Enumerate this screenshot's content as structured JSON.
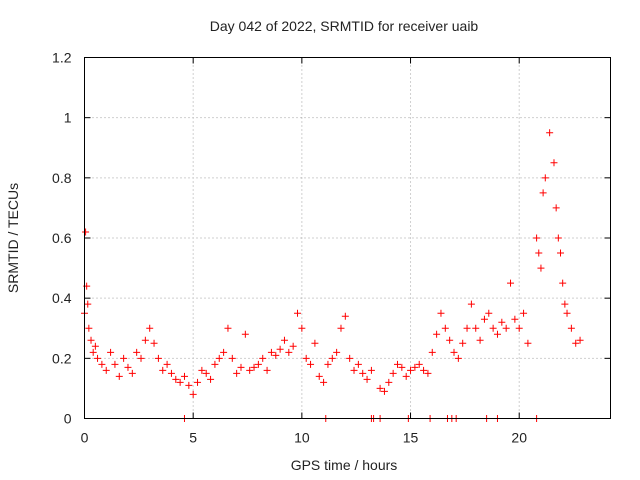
{
  "chart_data": {
    "type": "scatter",
    "title": "Day 042 of 2022, SRMTID for receiver uaib",
    "xlabel": "GPS time / hours",
    "ylabel": "SRMTID / TECUs",
    "xlim": [
      0,
      24.2
    ],
    "ylim": [
      0,
      1.2
    ],
    "xticks": [
      0,
      5,
      10,
      15,
      20
    ],
    "xtick_labels": [
      "0",
      "5",
      "10",
      "15",
      "20"
    ],
    "yticks": [
      0,
      0.2,
      0.4,
      0.6,
      0.8,
      1.0,
      1.2
    ],
    "ytick_labels": [
      "0",
      "0.2",
      "0.4",
      "0.6",
      "0.8",
      "1",
      "1.2"
    ],
    "grid": true,
    "marker": "+",
    "series": [
      {
        "name": "SRMTID",
        "color": "#ff0000",
        "x": [
          0.0,
          0.05,
          0.1,
          0.15,
          0.2,
          0.3,
          0.4,
          0.5,
          0.6,
          0.8,
          1.0,
          1.2,
          1.4,
          1.6,
          1.8,
          2.0,
          2.2,
          2.4,
          2.6,
          2.8,
          3.0,
          3.2,
          3.4,
          3.6,
          3.8,
          4.0,
          4.2,
          4.4,
          4.6,
          4.8,
          5.0,
          5.2,
          5.4,
          5.6,
          5.8,
          6.0,
          6.2,
          6.4,
          6.6,
          6.8,
          7.0,
          7.2,
          7.4,
          7.6,
          7.8,
          8.0,
          8.2,
          8.4,
          8.6,
          8.8,
          9.0,
          9.2,
          9.4,
          9.6,
          9.8,
          10.0,
          10.2,
          10.4,
          10.6,
          10.8,
          11.0,
          11.2,
          11.4,
          11.6,
          11.8,
          12.0,
          12.2,
          12.4,
          12.6,
          12.8,
          13.0,
          13.2,
          13.6,
          13.8,
          14.0,
          14.2,
          14.4,
          14.6,
          14.8,
          15.0,
          15.2,
          15.4,
          15.6,
          15.8,
          16.0,
          16.2,
          16.4,
          16.6,
          16.8,
          17.0,
          17.2,
          17.4,
          17.6,
          17.8,
          18.0,
          18.2,
          18.4,
          18.6,
          18.8,
          19.0,
          19.2,
          19.4,
          19.6,
          19.8,
          20.0,
          20.2,
          20.4,
          20.8,
          20.9,
          21.0,
          21.1,
          21.2,
          21.4,
          21.6,
          21.7,
          21.8,
          21.9,
          22.0,
          22.1,
          22.2,
          22.4,
          22.6,
          22.8,
          4.6,
          11.1,
          13.2,
          13.3,
          13.6,
          14.9,
          15.9,
          16.7,
          16.9,
          17.1,
          18.5,
          19.0,
          20.8
        ],
        "y": [
          0.35,
          0.62,
          0.44,
          0.38,
          0.3,
          0.26,
          0.22,
          0.24,
          0.2,
          0.18,
          0.16,
          0.22,
          0.18,
          0.14,
          0.2,
          0.17,
          0.15,
          0.22,
          0.2,
          0.26,
          0.3,
          0.25,
          0.2,
          0.16,
          0.18,
          0.15,
          0.13,
          0.12,
          0.14,
          0.11,
          0.08,
          0.12,
          0.16,
          0.15,
          0.13,
          0.18,
          0.2,
          0.22,
          0.3,
          0.2,
          0.15,
          0.17,
          0.28,
          0.16,
          0.17,
          0.18,
          0.2,
          0.16,
          0.22,
          0.21,
          0.23,
          0.26,
          0.22,
          0.24,
          0.35,
          0.3,
          0.2,
          0.18,
          0.25,
          0.14,
          0.12,
          0.18,
          0.2,
          0.22,
          0.3,
          0.34,
          0.2,
          0.16,
          0.18,
          0.15,
          0.13,
          0.16,
          0.1,
          0.09,
          0.12,
          0.15,
          0.18,
          0.17,
          0.14,
          0.16,
          0.17,
          0.18,
          0.16,
          0.15,
          0.22,
          0.28,
          0.35,
          0.3,
          0.26,
          0.22,
          0.2,
          0.25,
          0.3,
          0.38,
          0.3,
          0.26,
          0.33,
          0.35,
          0.3,
          0.28,
          0.32,
          0.3,
          0.45,
          0.33,
          0.3,
          0.35,
          0.25,
          0.6,
          0.55,
          0.5,
          0.75,
          0.8,
          0.95,
          0.85,
          0.7,
          0.6,
          0.55,
          0.45,
          0.38,
          0.35,
          0.3,
          0.25,
          0.26,
          0.0,
          0.0,
          0.0,
          0.0,
          0.0,
          0.0,
          0.0,
          0.0,
          0.0,
          0.0,
          0.0,
          0.0,
          0.0
        ]
      }
    ]
  }
}
